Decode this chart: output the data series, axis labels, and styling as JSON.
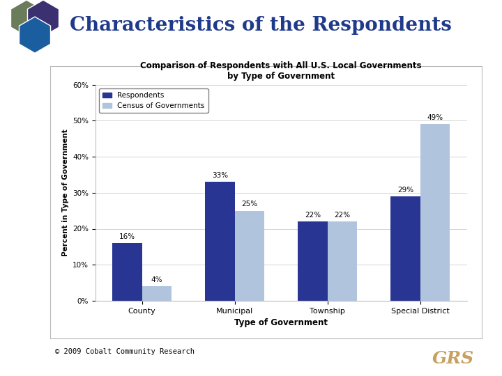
{
  "title": "Characteristics of the Respondents",
  "chart_title": "Comparison of Respondents with All U.S. Local Governments\nby Type of Government",
  "categories": [
    "County",
    "Municipal",
    "Township",
    "Special District"
  ],
  "respondents": [
    16,
    33,
    22,
    29
  ],
  "census": [
    4,
    25,
    22,
    49
  ],
  "ylabel": "Percent in Type of Government",
  "xlabel": "Type of Government",
  "legend_labels": [
    "Respondents",
    "Census of Governments"
  ],
  "bar_color_respondents": "#283593",
  "bar_color_census": "#B0C4DE",
  "ylim": [
    0,
    60
  ],
  "yticks": [
    0,
    10,
    20,
    30,
    40,
    50,
    60
  ],
  "ytick_labels": [
    "0%",
    "10%",
    "20%",
    "30%",
    "40%",
    "50%",
    "60%"
  ],
  "header_title_color": "#1F3A8A",
  "header_line_color": "#A0896A",
  "copyright_text": "© 2009 Cobalt Community Research",
  "shape_colors": [
    "#6B7C5A",
    "#3B3070",
    "#1B5EA0"
  ],
  "bg_color": "#FFFFFF",
  "border_color": "#BBBBBB",
  "grid_color": "#CCCCCC",
  "grs_color": "#C8A060"
}
